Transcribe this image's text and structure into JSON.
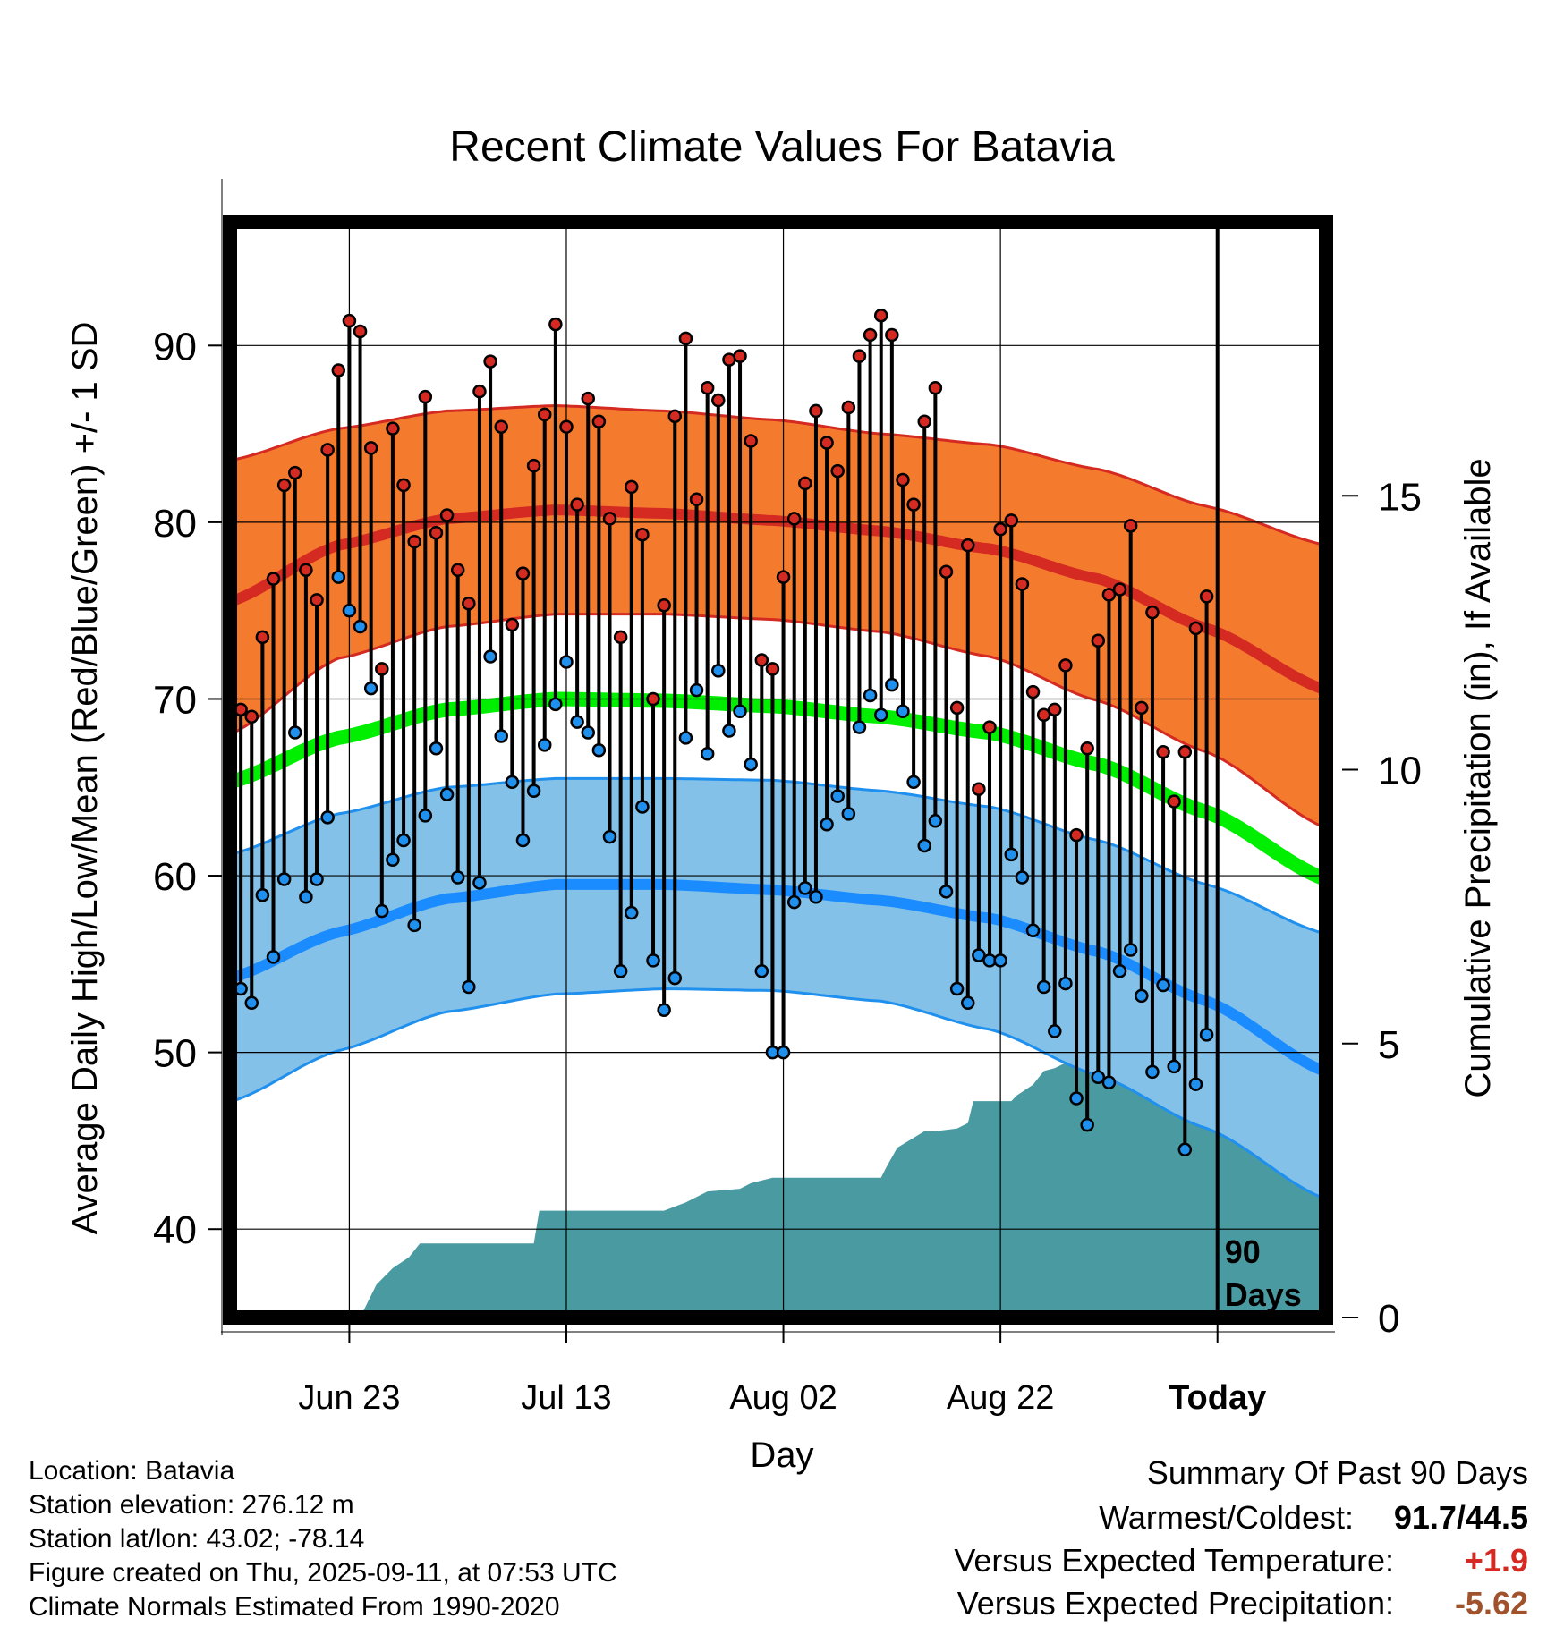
{
  "chart_data": {
    "type": "line",
    "title": "Recent Climate Values For Batavia",
    "xlabel": "Day",
    "ylabel": "Average Daily High/Low/Mean (Red/Blue/Green) +/- 1 SD",
    "y2label": "Cumulative Precipitation (in), If Available",
    "x_tick_labels": [
      "Jun 23",
      "Jul 13",
      "Aug 02",
      "Aug 22",
      "Today"
    ],
    "x_tick_days": [
      11,
      31,
      51,
      71,
      91
    ],
    "x_range": [
      0,
      101
    ],
    "ylim": [
      35,
      97
    ],
    "y_ticks": [
      40,
      50,
      60,
      70,
      80,
      90
    ],
    "y2lim": [
      0,
      20
    ],
    "y2_ticks": [
      0,
      5,
      10,
      15
    ],
    "today_marker_label": [
      "90",
      "Days"
    ],
    "colors": {
      "high_band": "#f47a2e",
      "high_band_edge": "#d42a22",
      "high_mean": "#d42a22",
      "low_band": "#84c1e8",
      "low_band_edge": "#2090ee",
      "low_mean": "#1a8cff",
      "mean_line": "#00ee00",
      "precip_fill": "#4a9aa2",
      "high_dot": "#d42a22",
      "low_dot": "#2090ee"
    },
    "normals": {
      "days": [
        0,
        10,
        20,
        30,
        40,
        50,
        60,
        70,
        80,
        90,
        101
      ],
      "high_mean": [
        75.5,
        78.7,
        80.2,
        80.7,
        80.5,
        80.1,
        79.5,
        78.5,
        76.8,
        74.0,
        70.5
      ],
      "high_upper": [
        83.5,
        85.3,
        86.3,
        86.6,
        86.3,
        85.8,
        85.0,
        84.4,
        83.0,
        80.9,
        78.7
      ],
      "high_lower": [
        68.0,
        72.3,
        74.1,
        74.8,
        74.8,
        74.5,
        73.8,
        72.4,
        69.9,
        67.0,
        62.7
      ],
      "mean_line": [
        65.3,
        67.8,
        69.4,
        70.0,
        69.9,
        69.6,
        69.0,
        68.1,
        66.3,
        63.6,
        59.8
      ],
      "low_mean": [
        54.2,
        56.8,
        58.7,
        59.5,
        59.5,
        59.2,
        58.6,
        57.6,
        55.7,
        52.9,
        48.9
      ],
      "low_upper": [
        61.2,
        63.5,
        65.0,
        65.5,
        65.5,
        65.4,
        64.8,
        63.9,
        62.0,
        59.5,
        56.7
      ],
      "low_lower": [
        47.2,
        50.1,
        52.3,
        53.3,
        53.6,
        53.5,
        52.9,
        51.3,
        48.7,
        45.7,
        41.7
      ]
    },
    "series": [
      {
        "name": "Daily High",
        "values": [
          69.4,
          69.0,
          73.5,
          76.8,
          82.1,
          82.8,
          77.3,
          75.6,
          84.1,
          88.6,
          91.4,
          90.8,
          84.2,
          71.7,
          85.3,
          82.1,
          78.9,
          87.1,
          79.4,
          80.4,
          77.3,
          75.4,
          87.4,
          89.1,
          85.4,
          74.2,
          77.1,
          83.2,
          86.1,
          91.2,
          85.4,
          81.0,
          87.0,
          85.7,
          80.2,
          73.5,
          82.0,
          79.3,
          70.0,
          75.3,
          86.0,
          90.4,
          81.3,
          87.6,
          86.9,
          89.2,
          89.4,
          84.6,
          72.2,
          71.7,
          76.9,
          80.2,
          82.2,
          86.3,
          84.5,
          82.9,
          86.5,
          89.4,
          90.6,
          91.7,
          90.6,
          82.4,
          81.0,
          85.7,
          87.6,
          77.2,
          69.5,
          78.7,
          64.9,
          68.4,
          79.6,
          80.1,
          76.5,
          70.4,
          69.1,
          69.4,
          71.9,
          62.3,
          67.2,
          73.3,
          75.9,
          76.2,
          79.8,
          69.5,
          74.9,
          67.0,
          64.2,
          67.0,
          74.0,
          75.8
        ]
      },
      {
        "name": "Daily Low",
        "values": [
          53.6,
          52.8,
          58.9,
          55.4,
          59.8,
          68.1,
          58.8,
          59.8,
          63.3,
          76.9,
          75.0,
          74.1,
          70.6,
          58.0,
          60.9,
          62.0,
          57.2,
          63.4,
          67.2,
          64.6,
          59.9,
          53.7,
          59.6,
          72.4,
          67.9,
          65.3,
          62.0,
          64.8,
          67.4,
          69.7,
          72.1,
          68.7,
          68.1,
          67.1,
          62.2,
          54.6,
          57.9,
          63.9,
          55.2,
          52.4,
          54.2,
          67.8,
          70.5,
          66.9,
          71.6,
          68.2,
          69.3,
          66.3,
          54.6,
          50.0,
          50.0,
          58.5,
          59.3,
          58.8,
          62.9,
          64.5,
          63.5,
          68.4,
          70.2,
          69.1,
          70.8,
          69.3,
          65.3,
          61.7,
          63.1,
          59.1,
          53.6,
          52.8,
          55.5,
          55.2,
          55.2,
          61.2,
          59.9,
          56.9,
          53.7,
          51.2,
          53.9,
          47.4,
          45.9,
          48.6,
          48.3,
          54.6,
          55.8,
          53.2,
          48.9,
          53.8,
          49.2,
          44.5,
          48.2,
          51.0
        ]
      },
      {
        "name": "Cumulative Precipitation",
        "days": [
          0,
          12,
          13.5,
          15,
          16.5,
          17.5,
          28,
          28.5,
          40,
          42,
          44,
          47,
          48,
          50,
          60,
          60.5,
          61.5,
          64,
          65,
          67,
          68,
          68.5,
          72,
          72.5,
          74,
          75,
          76,
          77,
          80,
          81,
          82,
          83,
          84,
          86,
          88,
          91,
          101
        ],
        "values": [
          0,
          0,
          0.6,
          0.9,
          1.1,
          1.35,
          1.35,
          1.95,
          1.95,
          2.1,
          2.3,
          2.35,
          2.45,
          2.55,
          2.55,
          2.75,
          3.1,
          3.4,
          3.4,
          3.45,
          3.55,
          3.95,
          3.95,
          4.05,
          4.25,
          4.5,
          4.55,
          4.65,
          4.65,
          4.8,
          4.85,
          4.92,
          4.95,
          5.0,
          5.05,
          5.05,
          5.05
        ]
      }
    ],
    "legend": "none",
    "grid": true
  },
  "footer": {
    "location": "Location: Batavia",
    "elevation": "Station elevation: 276.12 m",
    "latlon": "Station lat/lon: 43.02; -78.14",
    "created": "Figure created on Thu, 2025-09-11, at 07:53 UTC",
    "normals": "Climate Normals Estimated From 1990-2020"
  },
  "summary": {
    "title": "Summary Of Past 90 Days",
    "warm_cold_label": "Warmest/Coldest:",
    "warm_cold_value": "91.7/44.5",
    "temp_label": "Versus Expected Temperature:",
    "temp_value": "+1.9",
    "temp_color": "#d42a22",
    "precip_label": "Versus Expected Precipitation:",
    "precip_value": "-5.62",
    "precip_color": "#a0522d"
  }
}
